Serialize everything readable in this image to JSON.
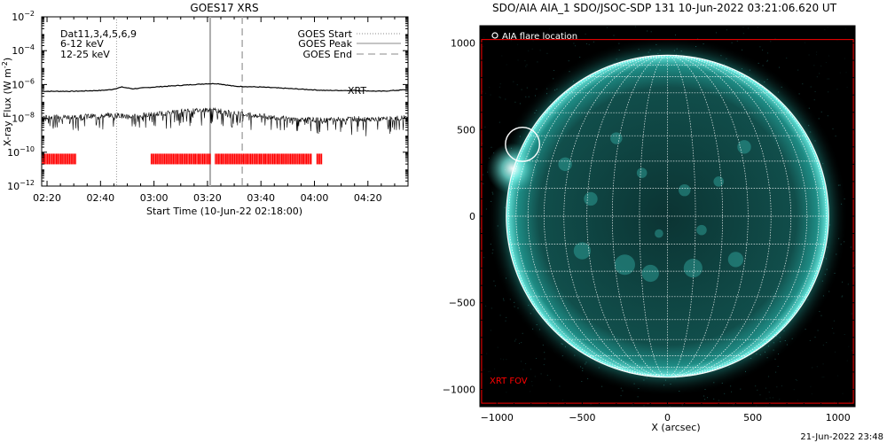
{
  "goes_panel": {
    "chart_data": {
      "type": "line",
      "title": "GOES17 XRS",
      "xlabel": "Start Time (10-Jun-22 02:18:00)",
      "ylabel": "X-ray Flux (W m",
      "ylabel_sup": "-2",
      "ylabel_close": ")",
      "y_scale": "log",
      "ylim_exponents": [
        -12,
        -2
      ],
      "y_tick_exponents": [
        -2,
        -4,
        -6,
        -8,
        -10,
        -12
      ],
      "y_tick_base": "10",
      "xlim_minutes": [
        138,
        275
      ],
      "x_ticks": [
        {
          "minute": 140,
          "label": "02:20"
        },
        {
          "minute": 160,
          "label": "02:40"
        },
        {
          "minute": 180,
          "label": "03:00"
        },
        {
          "minute": 200,
          "label": "03:20"
        },
        {
          "minute": 220,
          "label": "03:40"
        },
        {
          "minute": 240,
          "label": "04:00"
        },
        {
          "minute": 260,
          "label": "04:20"
        }
      ],
      "top_left_legend": [
        {
          "text": "Dat11,3,4,5,6,9",
          "color": "#000000"
        },
        {
          "text": "6-12 keV",
          "color": "#ff00ff"
        },
        {
          "text": "12-25 keV",
          "color": "#00dd00"
        }
      ],
      "event_legend": [
        {
          "label": "GOES Start",
          "style": "dotted"
        },
        {
          "label": "GOES Peak",
          "style": "solid"
        },
        {
          "label": "GOES End",
          "style": "dashed"
        }
      ],
      "event_minutes": {
        "start": 166,
        "peak": 201,
        "end": 213
      },
      "xrt_label": "XRT",
      "xrt_color": "#ff0000",
      "series": [
        {
          "x_minutes": [
            138,
            150,
            160,
            164,
            168,
            172,
            180,
            190,
            200,
            204,
            210,
            220,
            232,
            244,
            255,
            265,
            275
          ],
          "y_exponents": [
            -6.4,
            -6.4,
            -6.35,
            -6.3,
            -6.15,
            -6.25,
            -6.15,
            -6.05,
            -5.95,
            -5.95,
            -6.1,
            -6.15,
            -6.25,
            -6.35,
            -6.35,
            -6.4,
            -6.3
          ]
        },
        {
          "x_minutes": [
            138,
            150,
            160,
            166,
            172,
            180,
            190,
            200,
            205,
            210,
            220,
            232,
            244,
            255,
            265,
            275
          ],
          "y_exponents": [
            -7.95,
            -7.9,
            -7.85,
            -7.8,
            -7.9,
            -7.75,
            -7.6,
            -7.5,
            -7.55,
            -7.7,
            -7.85,
            -8.05,
            -8.1,
            -8.0,
            -8.05,
            -7.95
          ]
        }
      ],
      "xrt_coverage_minutes": [
        [
          138,
          151
        ],
        [
          179,
          201.5
        ],
        [
          203,
          239
        ],
        [
          241,
          243
        ]
      ],
      "xrt_y_exponent": -10.4
    }
  },
  "aia_panel": {
    "chart_data": {
      "type": "scatter",
      "title": "SDO/AIA AIA_1 SDO/JSOC-SDP 131 10-Jun-2022 03:21:06.620 UT",
      "xlabel": "X (arcsec)",
      "ylabel": "",
      "xlim": [
        -1100,
        1100
      ],
      "ylim": [
        -1100,
        1100
      ],
      "x_ticks": [
        -1000,
        -500,
        0,
        500,
        1000
      ],
      "y_ticks": [
        1000,
        500,
        0,
        -500,
        -1000
      ],
      "tick_labels": [
        "−1000",
        "−500",
        "0",
        "500",
        "1000"
      ],
      "y_tick_labels": [
        "1000",
        "500",
        "0",
        "−500",
        "−1000"
      ],
      "solar_radius_arcsec": 945,
      "grid_step_deg": 10,
      "flare_location": {
        "x": -850,
        "y": 415,
        "radius": 100
      },
      "flare_legend": "AIA flare location",
      "xrt_fov": {
        "label": "XRT FOV",
        "x": [
          -1090,
          1090
        ],
        "y": [
          -1080,
          1020
        ],
        "color": "#ff0000"
      },
      "disk_color": "#0f4a48",
      "limb_color": "#6ff0e6"
    }
  },
  "footer": {
    "timestamp": "21-Jun-2022 23:48"
  }
}
